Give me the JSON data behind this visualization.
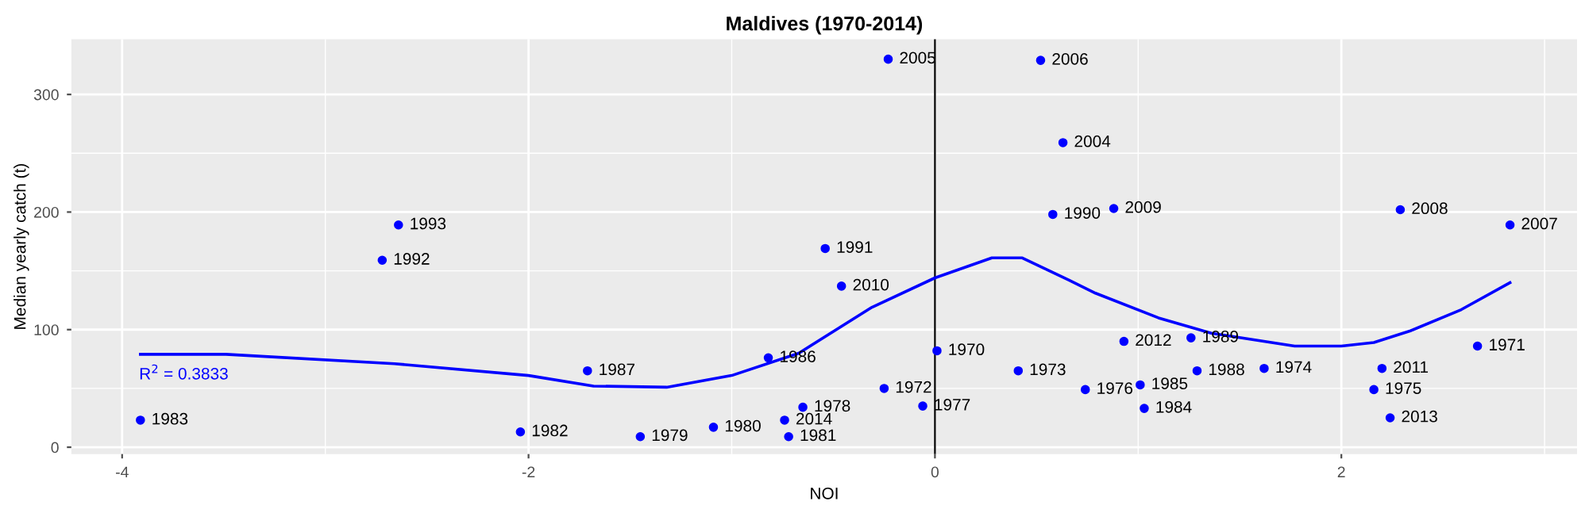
{
  "chart_data": {
    "type": "scatter",
    "title": "Maldives (1970-2014)",
    "xlabel": "NOI",
    "ylabel": "Median yearly catch (t)",
    "xlim": [
      -4.25,
      3.16
    ],
    "ylim": [
      -5.8,
      347
    ],
    "xticks": [
      -4,
      -2,
      0,
      2
    ],
    "yticks": [
      0,
      100,
      200,
      300
    ],
    "grid": true,
    "marker": "circle",
    "series": [
      {
        "color": "#0000ff",
        "x": [
          -3.91,
          -2.64,
          -2.72,
          -2.04,
          -1.71,
          -1.45,
          -1.09,
          -0.82,
          -0.74,
          -0.72,
          -0.65,
          -0.54,
          -0.46,
          -0.23,
          -0.25,
          -0.06,
          0.01,
          0.41,
          0.52,
          0.63,
          0.58,
          0.74,
          0.88,
          0.93,
          1.01,
          1.03,
          1.26,
          1.29,
          1.62,
          2.2,
          2.16,
          2.24,
          2.29,
          2.67,
          2.83
        ],
        "values": [
          23,
          189,
          159,
          13,
          65,
          9,
          17,
          76,
          23,
          9,
          34,
          169,
          137,
          330,
          50,
          35,
          82,
          65,
          329,
          259,
          198,
          49,
          203,
          90,
          53,
          33,
          93,
          65,
          67,
          67,
          49,
          25,
          202,
          86,
          189
        ]
      },
      {
        "type": "line",
        "color": "#0000ff",
        "marker": "none",
        "line_style": "solid",
        "x": [
          -3.91,
          -3.49,
          -2.66,
          -2.0,
          -1.68,
          -1.32,
          -1.0,
          -0.67,
          -0.31,
          0.0,
          0.28,
          0.43,
          0.66,
          0.79,
          1.1,
          1.36,
          1.77,
          2.0,
          2.16,
          2.34,
          2.59,
          2.83
        ],
        "values": [
          79,
          79,
          71,
          61,
          52,
          51,
          61,
          80,
          119,
          144,
          161,
          161,
          142,
          131,
          110,
          97,
          86,
          86,
          89,
          99,
          117,
          140
        ]
      }
    ],
    "ref_lines": [
      {
        "axis": "x",
        "value": 0,
        "color": "#000000"
      }
    ],
    "annotations": [
      "R$^{2}$ = 0.3833",
      {
        "text": "1983",
        "x": -3.91,
        "y": 23
      },
      {
        "text": "1993",
        "x": -2.64,
        "y": 189
      },
      {
        "text": "1992",
        "x": -2.72,
        "y": 159
      },
      {
        "text": "1982",
        "x": -2.04,
        "y": 13
      },
      {
        "text": "1987",
        "x": -1.71,
        "y": 65
      },
      {
        "text": "1979",
        "x": -1.45,
        "y": 9
      },
      {
        "text": "1980",
        "x": -1.09,
        "y": 17
      },
      {
        "text": "1986",
        "x": -0.82,
        "y": 76
      },
      {
        "text": "2014",
        "x": -0.74,
        "y": 23
      },
      {
        "text": "1981",
        "x": -0.72,
        "y": 9
      },
      {
        "text": "1978",
        "x": -0.65,
        "y": 34
      },
      {
        "text": "1991",
        "x": -0.54,
        "y": 169
      },
      {
        "text": "2010",
        "x": -0.46,
        "y": 137
      },
      {
        "text": "2005",
        "x": -0.23,
        "y": 330
      },
      {
        "text": "1972",
        "x": -0.25,
        "y": 50
      },
      {
        "text": "1977",
        "x": -0.06,
        "y": 35
      },
      {
        "text": "1970",
        "x": 0.01,
        "y": 82
      },
      {
        "text": "1973",
        "x": 0.41,
        "y": 65
      },
      {
        "text": "2006",
        "x": 0.52,
        "y": 329
      },
      {
        "text": "2004",
        "x": 0.63,
        "y": 259
      },
      {
        "text": "1990",
        "x": 0.58,
        "y": 198
      },
      {
        "text": "1976",
        "x": 0.74,
        "y": 49
      },
      {
        "text": "2009",
        "x": 0.88,
        "y": 203
      },
      {
        "text": "2012",
        "x": 0.93,
        "y": 90
      },
      {
        "text": "1985",
        "x": 1.01,
        "y": 53
      },
      {
        "text": "1984",
        "x": 1.03,
        "y": 33
      },
      {
        "text": "1989",
        "x": 1.26,
        "y": 93
      },
      {
        "text": "1988",
        "x": 1.29,
        "y": 65
      },
      {
        "text": "1974",
        "x": 1.62,
        "y": 67
      },
      {
        "text": "2011",
        "x": 2.2,
        "y": 67
      },
      {
        "text": "1975",
        "x": 2.16,
        "y": 49
      },
      {
        "text": "2013",
        "x": 2.24,
        "y": 25
      },
      {
        "text": "2008",
        "x": 2.29,
        "y": 202
      },
      {
        "text": "1971",
        "x": 2.67,
        "y": 86
      },
      {
        "text": "2007",
        "x": 2.83,
        "y": 189
      }
    ]
  }
}
